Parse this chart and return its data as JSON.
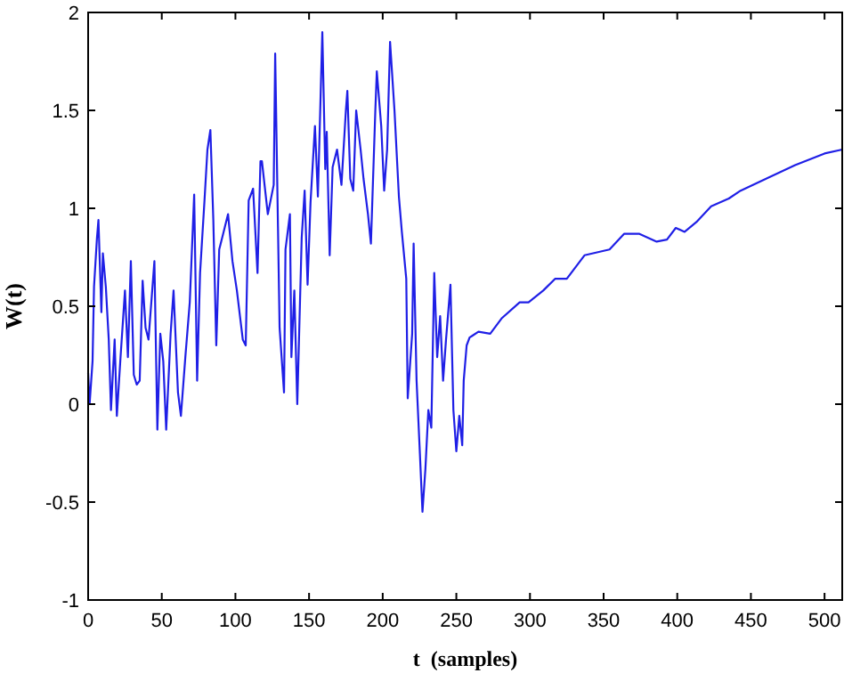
{
  "chart_data": {
    "type": "line",
    "xlabel": "t  (samples)",
    "ylabel": "W(t)",
    "xlim": [
      0,
      512
    ],
    "ylim": [
      -1,
      2
    ],
    "xticks": [
      0,
      50,
      100,
      150,
      200,
      250,
      300,
      350,
      400,
      450,
      500
    ],
    "yticks": [
      -1,
      -0.5,
      0,
      0.5,
      1,
      1.5,
      2
    ],
    "grid": false,
    "marker": "none",
    "line_style": "solid",
    "series": [
      {
        "color": "#1f1fe6",
        "x": [
          0,
          1,
          3,
          4,
          6,
          7,
          9,
          10,
          12,
          14,
          15.5,
          18,
          19.5,
          22,
          25,
          27,
          29,
          31,
          33,
          35,
          37,
          39,
          41,
          45,
          47,
          49,
          51,
          53,
          56,
          58,
          61,
          63,
          66,
          69,
          72,
          74,
          76,
          79,
          81,
          83,
          85,
          87,
          89,
          92,
          95,
          98,
          101,
          105,
          107,
          109,
          112,
          115,
          117,
          118,
          122,
          126,
          127,
          130,
          133,
          134,
          137,
          138,
          140,
          142,
          145,
          147,
          149,
          151,
          154,
          156,
          159,
          161,
          162,
          164,
          166,
          169,
          172,
          175,
          176,
          178,
          180,
          182,
          185,
          187,
          190,
          192,
          195,
          196,
          199,
          201,
          203,
          205,
          208,
          211,
          213,
          216,
          217,
          220,
          221,
          223,
          225,
          227,
          229,
          231,
          233,
          235,
          237,
          239,
          241,
          243,
          246,
          248,
          250,
          252,
          254,
          255,
          257,
          259,
          261,
          265,
          273,
          281,
          293,
          299,
          309,
          317,
          325,
          337,
          354,
          364,
          374,
          386,
          393,
          399,
          405,
          413,
          423,
          435,
          443,
          460,
          480,
          500,
          512
        ],
        "values": [
          0.16,
          0,
          0.22,
          0.6,
          0.85,
          0.94,
          0.47,
          0.77,
          0.6,
          0.33,
          -0.03,
          0.33,
          -0.06,
          0.24,
          0.58,
          0.24,
          0.73,
          0.15,
          0.1,
          0.12,
          0.63,
          0.39,
          0.33,
          0.73,
          -0.13,
          0.36,
          0.22,
          -0.13,
          0.36,
          0.58,
          0.06,
          -0.06,
          0.24,
          0.52,
          1.07,
          0.12,
          0.67,
          1.04,
          1.3,
          1.4,
          0.94,
          0.3,
          0.79,
          0.88,
          0.97,
          0.73,
          0.58,
          0.33,
          0.3,
          1.04,
          1.1,
          0.67,
          1.24,
          1.24,
          0.97,
          1.12,
          1.79,
          0.39,
          0.06,
          0.79,
          0.97,
          0.24,
          0.58,
          0,
          0.85,
          1.09,
          0.61,
          1.03,
          1.42,
          1.06,
          1.9,
          1.2,
          1.39,
          0.76,
          1.21,
          1.3,
          1.12,
          1.5,
          1.6,
          1.15,
          1.09,
          1.5,
          1.3,
          1.15,
          0.97,
          0.82,
          1.5,
          1.7,
          1.42,
          1.09,
          1.3,
          1.85,
          1.5,
          1.06,
          0.88,
          0.64,
          0.03,
          0.36,
          0.82,
          0.12,
          -0.21,
          -0.55,
          -0.33,
          -0.03,
          -0.12,
          0.67,
          0.24,
          0.45,
          0.12,
          0.33,
          0.61,
          -0.03,
          -0.24,
          -0.06,
          -0.21,
          0.12,
          0.3,
          0.34,
          0.35,
          0.37,
          0.36,
          0.44,
          0.52,
          0.52,
          0.58,
          0.64,
          0.64,
          0.76,
          0.79,
          0.87,
          0.87,
          0.83,
          0.84,
          0.9,
          0.88,
          0.93,
          1.01,
          1.05,
          1.09,
          1.15,
          1.22,
          1.28,
          1.3
        ]
      }
    ]
  }
}
